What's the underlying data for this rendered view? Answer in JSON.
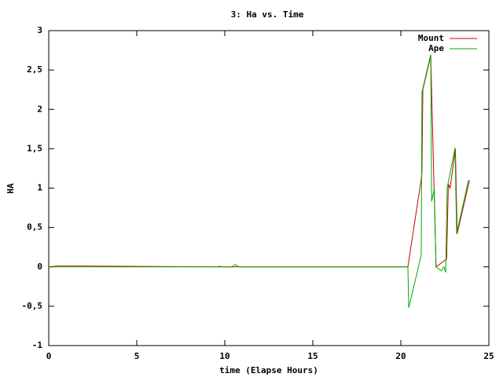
{
  "chart_data": {
    "type": "line",
    "title": "3: Ha vs. Time",
    "x_label": "time (Elapse Hours)",
    "y_label": "HA",
    "xlim": [
      0,
      25
    ],
    "xticks": [
      0,
      5,
      10,
      15,
      20,
      25
    ],
    "ylim": [
      -1,
      3
    ],
    "yticks": [
      -1,
      {
        "value": -0.5,
        "label": "-0,5"
      },
      0,
      {
        "value": 0.5,
        "label": "0,5"
      },
      1,
      {
        "value": 1.5,
        "label": "1,5"
      },
      2,
      {
        "value": 2.5,
        "label": "2,5"
      },
      3
    ],
    "legend": "top-right",
    "series": [
      {
        "name": "Mount",
        "color": "#cc0000",
        "x": [
          0,
          0.5,
          2.2,
          9.6,
          20.4,
          21.15,
          21.2,
          21.25,
          21.7,
          22.0,
          22.6,
          22.7,
          22.8,
          23.1,
          23.2,
          23.9
        ],
        "values": [
          0,
          0.01,
          0.01,
          0,
          0,
          1.1,
          1.2,
          2.25,
          2.68,
          0,
          0.1,
          1.05,
          1.0,
          1.5,
          0.42,
          1.1
        ]
      },
      {
        "name": "Ape",
        "color": "#00aa00",
        "x": [
          0,
          9.6,
          9.7,
          9.8,
          10.4,
          10.6,
          10.8,
          20.4,
          20.45,
          21.16,
          21.2,
          21.7,
          21.75,
          21.9,
          22.0,
          22.3,
          22.45,
          22.55,
          22.63,
          23.08,
          23.17,
          23.84
        ],
        "values": [
          0,
          0,
          0.01,
          0,
          0,
          0.03,
          0,
          0,
          -0.52,
          0.15,
          2.22,
          2.7,
          0.83,
          0.99,
          0,
          -0.05,
          0,
          -0.07,
          1.0,
          1.51,
          0.42,
          1.1
        ]
      }
    ]
  }
}
